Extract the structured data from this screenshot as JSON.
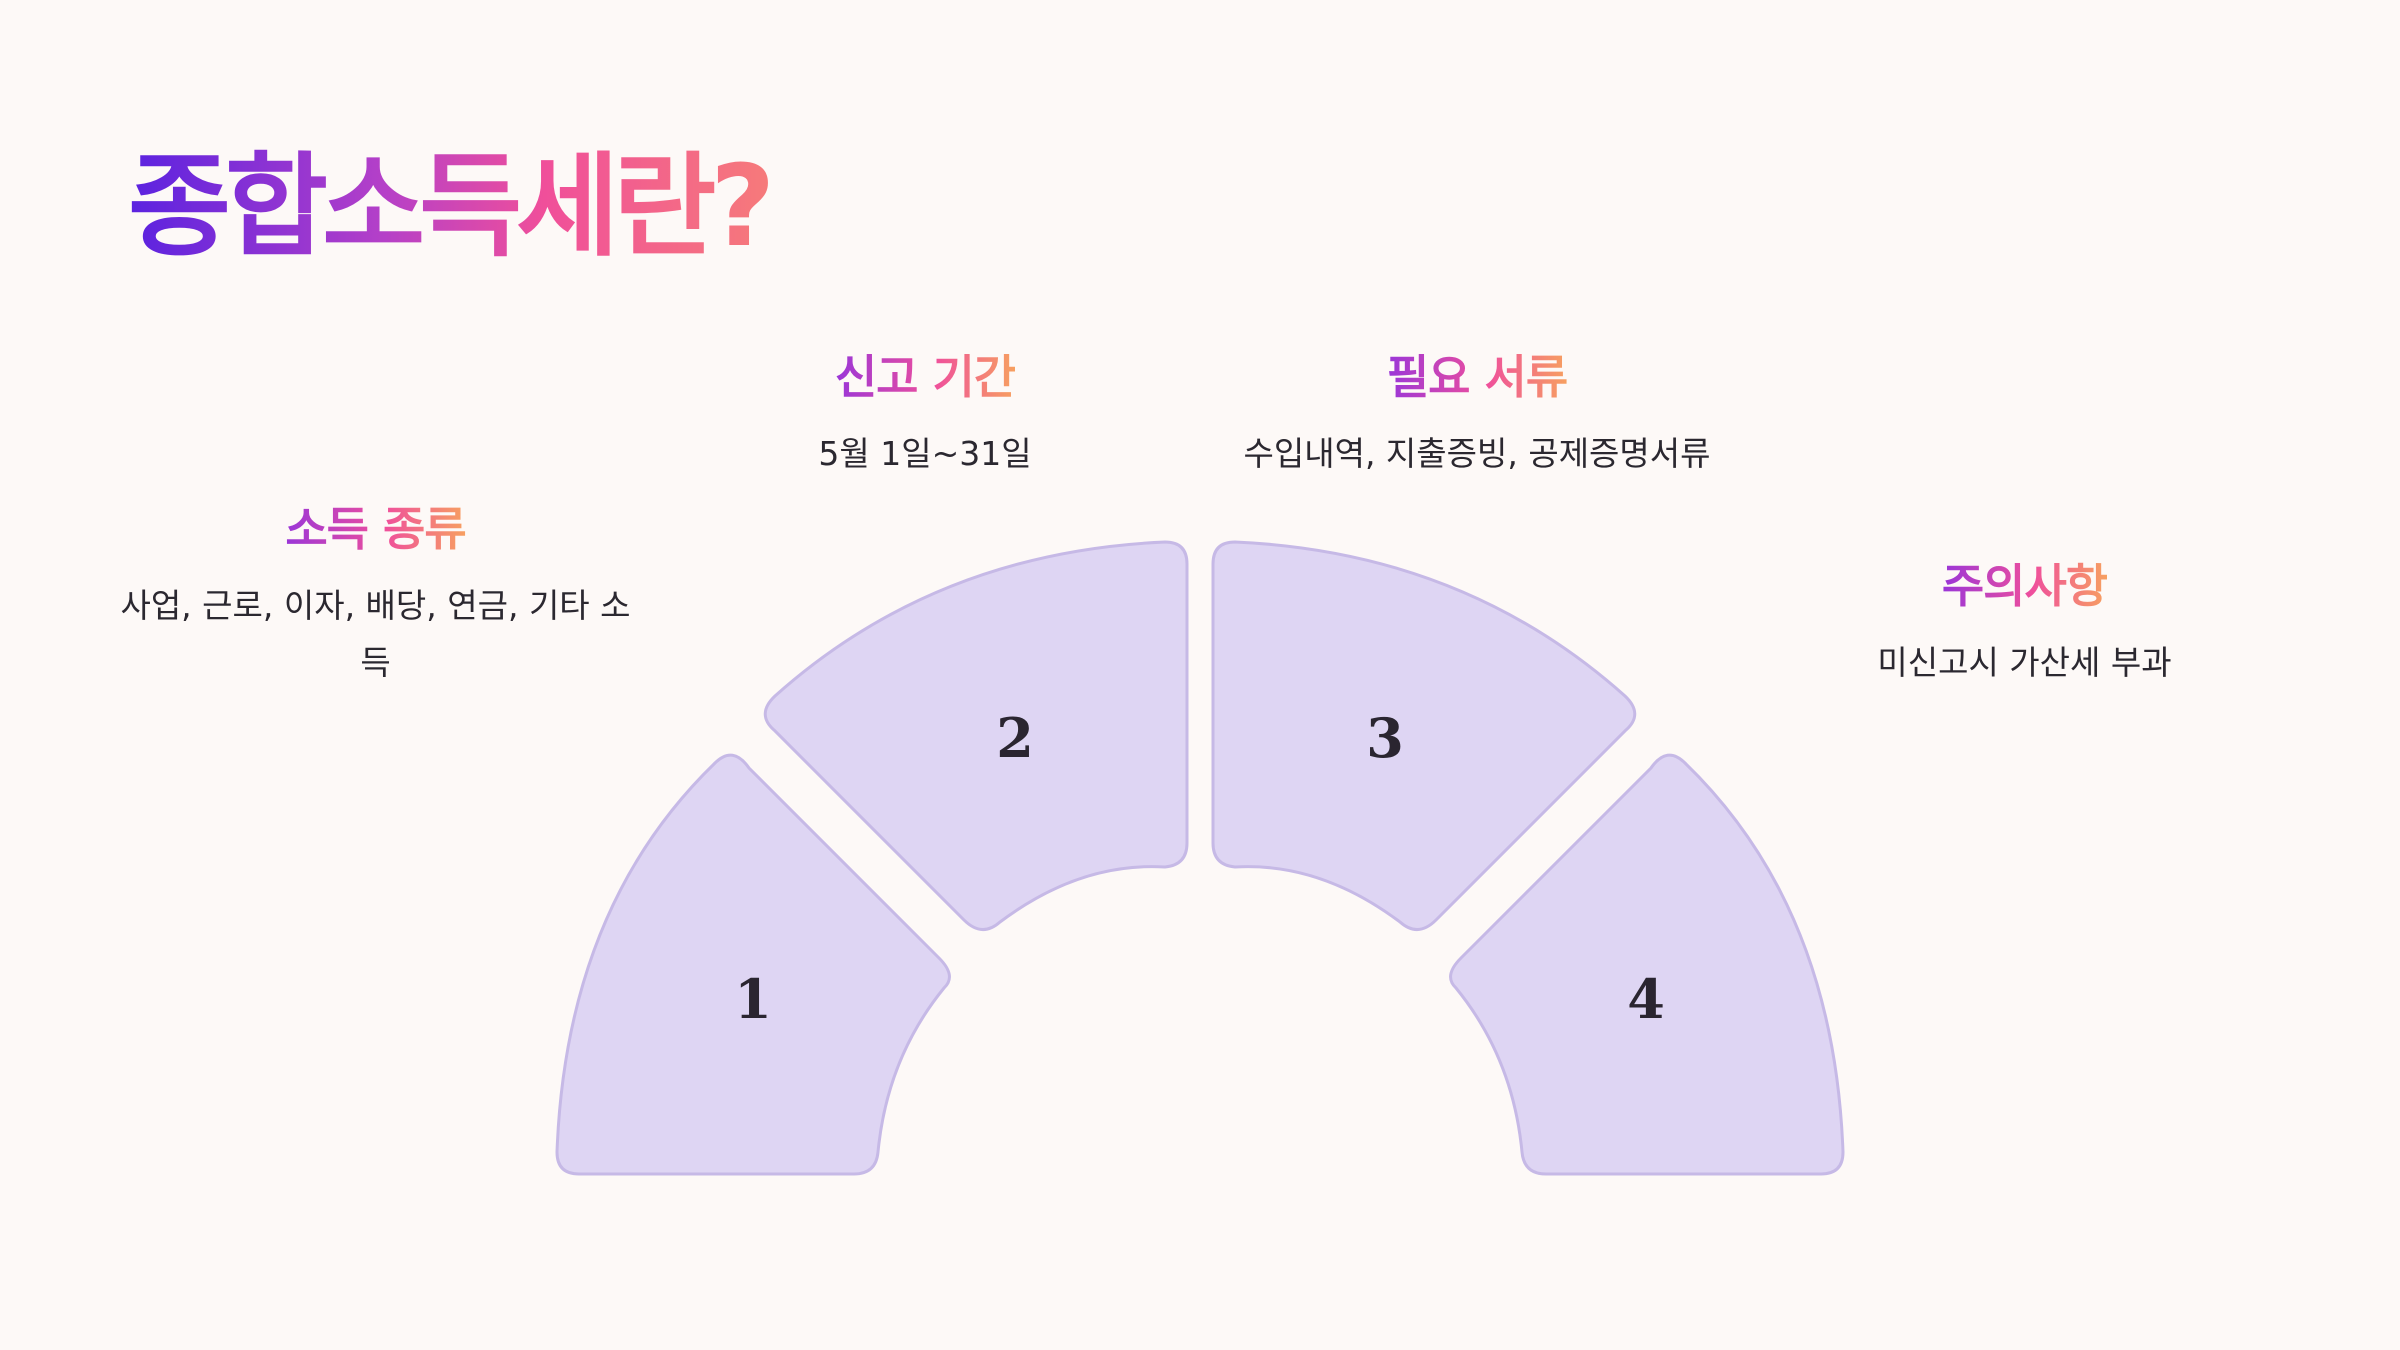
{
  "title": "종합소득세란?",
  "segments": [
    {
      "number": "1",
      "heading": "소득 종류",
      "description": "사업, 근로, 이자, 배당, 연금, 기타 소득"
    },
    {
      "number": "2",
      "heading": "신고 기간",
      "description": "5월 1일~31일"
    },
    {
      "number": "3",
      "heading": "필요 서류",
      "description": "수입내역, 지출증빙, 공제증명서류"
    },
    {
      "number": "4",
      "heading": "주의사항",
      "description": "미신고시 가산세 부과"
    }
  ],
  "colors": {
    "background": "#fdf9f7",
    "segment_fill": "#ded5f3",
    "segment_stroke": "#c6b9e6",
    "title_gradient": [
      "#5a22e0",
      "#b540c8",
      "#f04f9a",
      "#f67a7a"
    ]
  }
}
